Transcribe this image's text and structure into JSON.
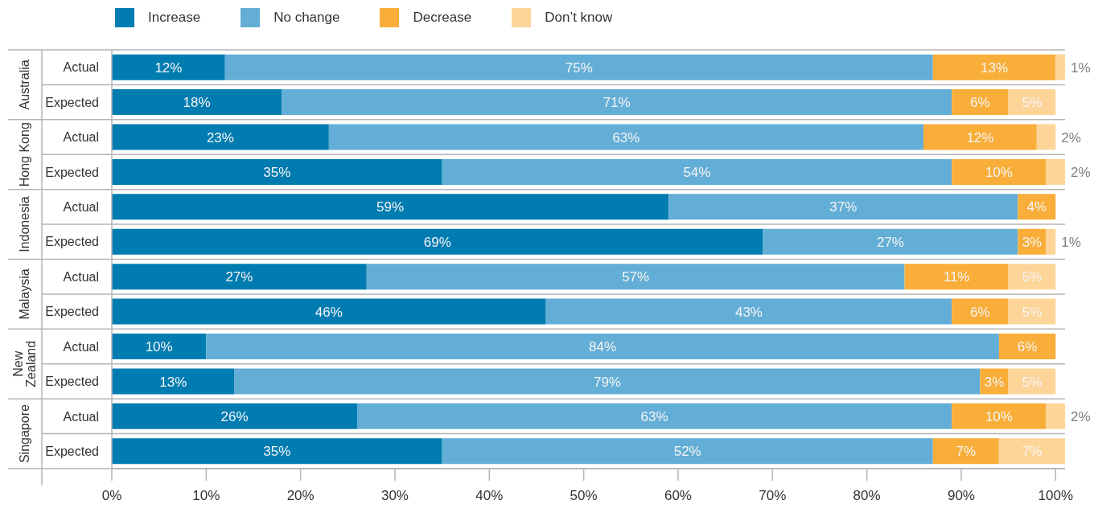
{
  "chart_data": {
    "type": "bar",
    "orientation": "horizontal",
    "stacked": true,
    "legend": "top left",
    "categories": [
      "Actual",
      "Expected",
      "Actual",
      "Expected",
      "Actual",
      "Expected",
      "Actual",
      "Expected",
      "Actual",
      "Expected",
      "Actual",
      "Expected"
    ],
    "annotations": [
      "Australia",
      "Hong Kong",
      "Indonesia",
      "Malaysia",
      "New Zealand",
      "Singapore"
    ],
    "series": [
      {
        "name": "Increase",
        "color": "#007cb1",
        "values": [
          12,
          18,
          23,
          35,
          59,
          69,
          27,
          46,
          10,
          13,
          26,
          35
        ],
        "value_labels": [
          "12%",
          "18%",
          "23%",
          "35%",
          "59%",
          "69%",
          "27%",
          "46%",
          "10%",
          "13%",
          "26%",
          "35%"
        ]
      },
      {
        "name": "No change",
        "color": "#63aed6",
        "values": [
          75,
          71,
          63,
          54,
          37,
          27,
          57,
          43,
          84,
          79,
          63,
          52
        ],
        "value_labels": [
          "75%",
          "71%",
          "63%",
          "54%",
          "37%",
          "27%",
          "57%",
          "43%",
          "84%",
          "79%",
          "63%",
          "52%"
        ]
      },
      {
        "name": "Decrease",
        "color": "#f9ae39",
        "values": [
          13,
          6,
          12,
          10,
          4,
          3,
          11,
          6,
          6,
          3,
          10,
          7
        ],
        "value_labels": [
          "13%",
          "6%",
          "12%",
          "10%",
          "4%",
          "3%",
          "11%",
          "6%",
          "6%",
          "3%",
          "10%",
          "7%"
        ]
      },
      {
        "name": "Don’t know",
        "color": "#fed599",
        "values": [
          1,
          5,
          2,
          2,
          null,
          1,
          5,
          5,
          null,
          5,
          2,
          7
        ],
        "value_labels": [
          "1%",
          "5%",
          "2%",
          "2%",
          null,
          "1%",
          "5%",
          "5%",
          null,
          "5%",
          "2%",
          "7%"
        ]
      }
    ],
    "xlim": [
      0,
      101
    ],
    "xticks": [
      {
        "value": 0,
        "label": "0%"
      },
      {
        "value": 10,
        "label": "10%"
      },
      {
        "value": 20,
        "label": "20%"
      },
      {
        "value": 30,
        "label": "30%"
      },
      {
        "value": 40,
        "label": "40%"
      },
      {
        "value": 50,
        "label": "50%"
      },
      {
        "value": 60,
        "label": "60%"
      },
      {
        "value": 70,
        "label": "70%"
      },
      {
        "value": 80,
        "label": "80%"
      },
      {
        "value": 90,
        "label": "90%"
      },
      {
        "value": 100,
        "label": "100%"
      }
    ]
  }
}
